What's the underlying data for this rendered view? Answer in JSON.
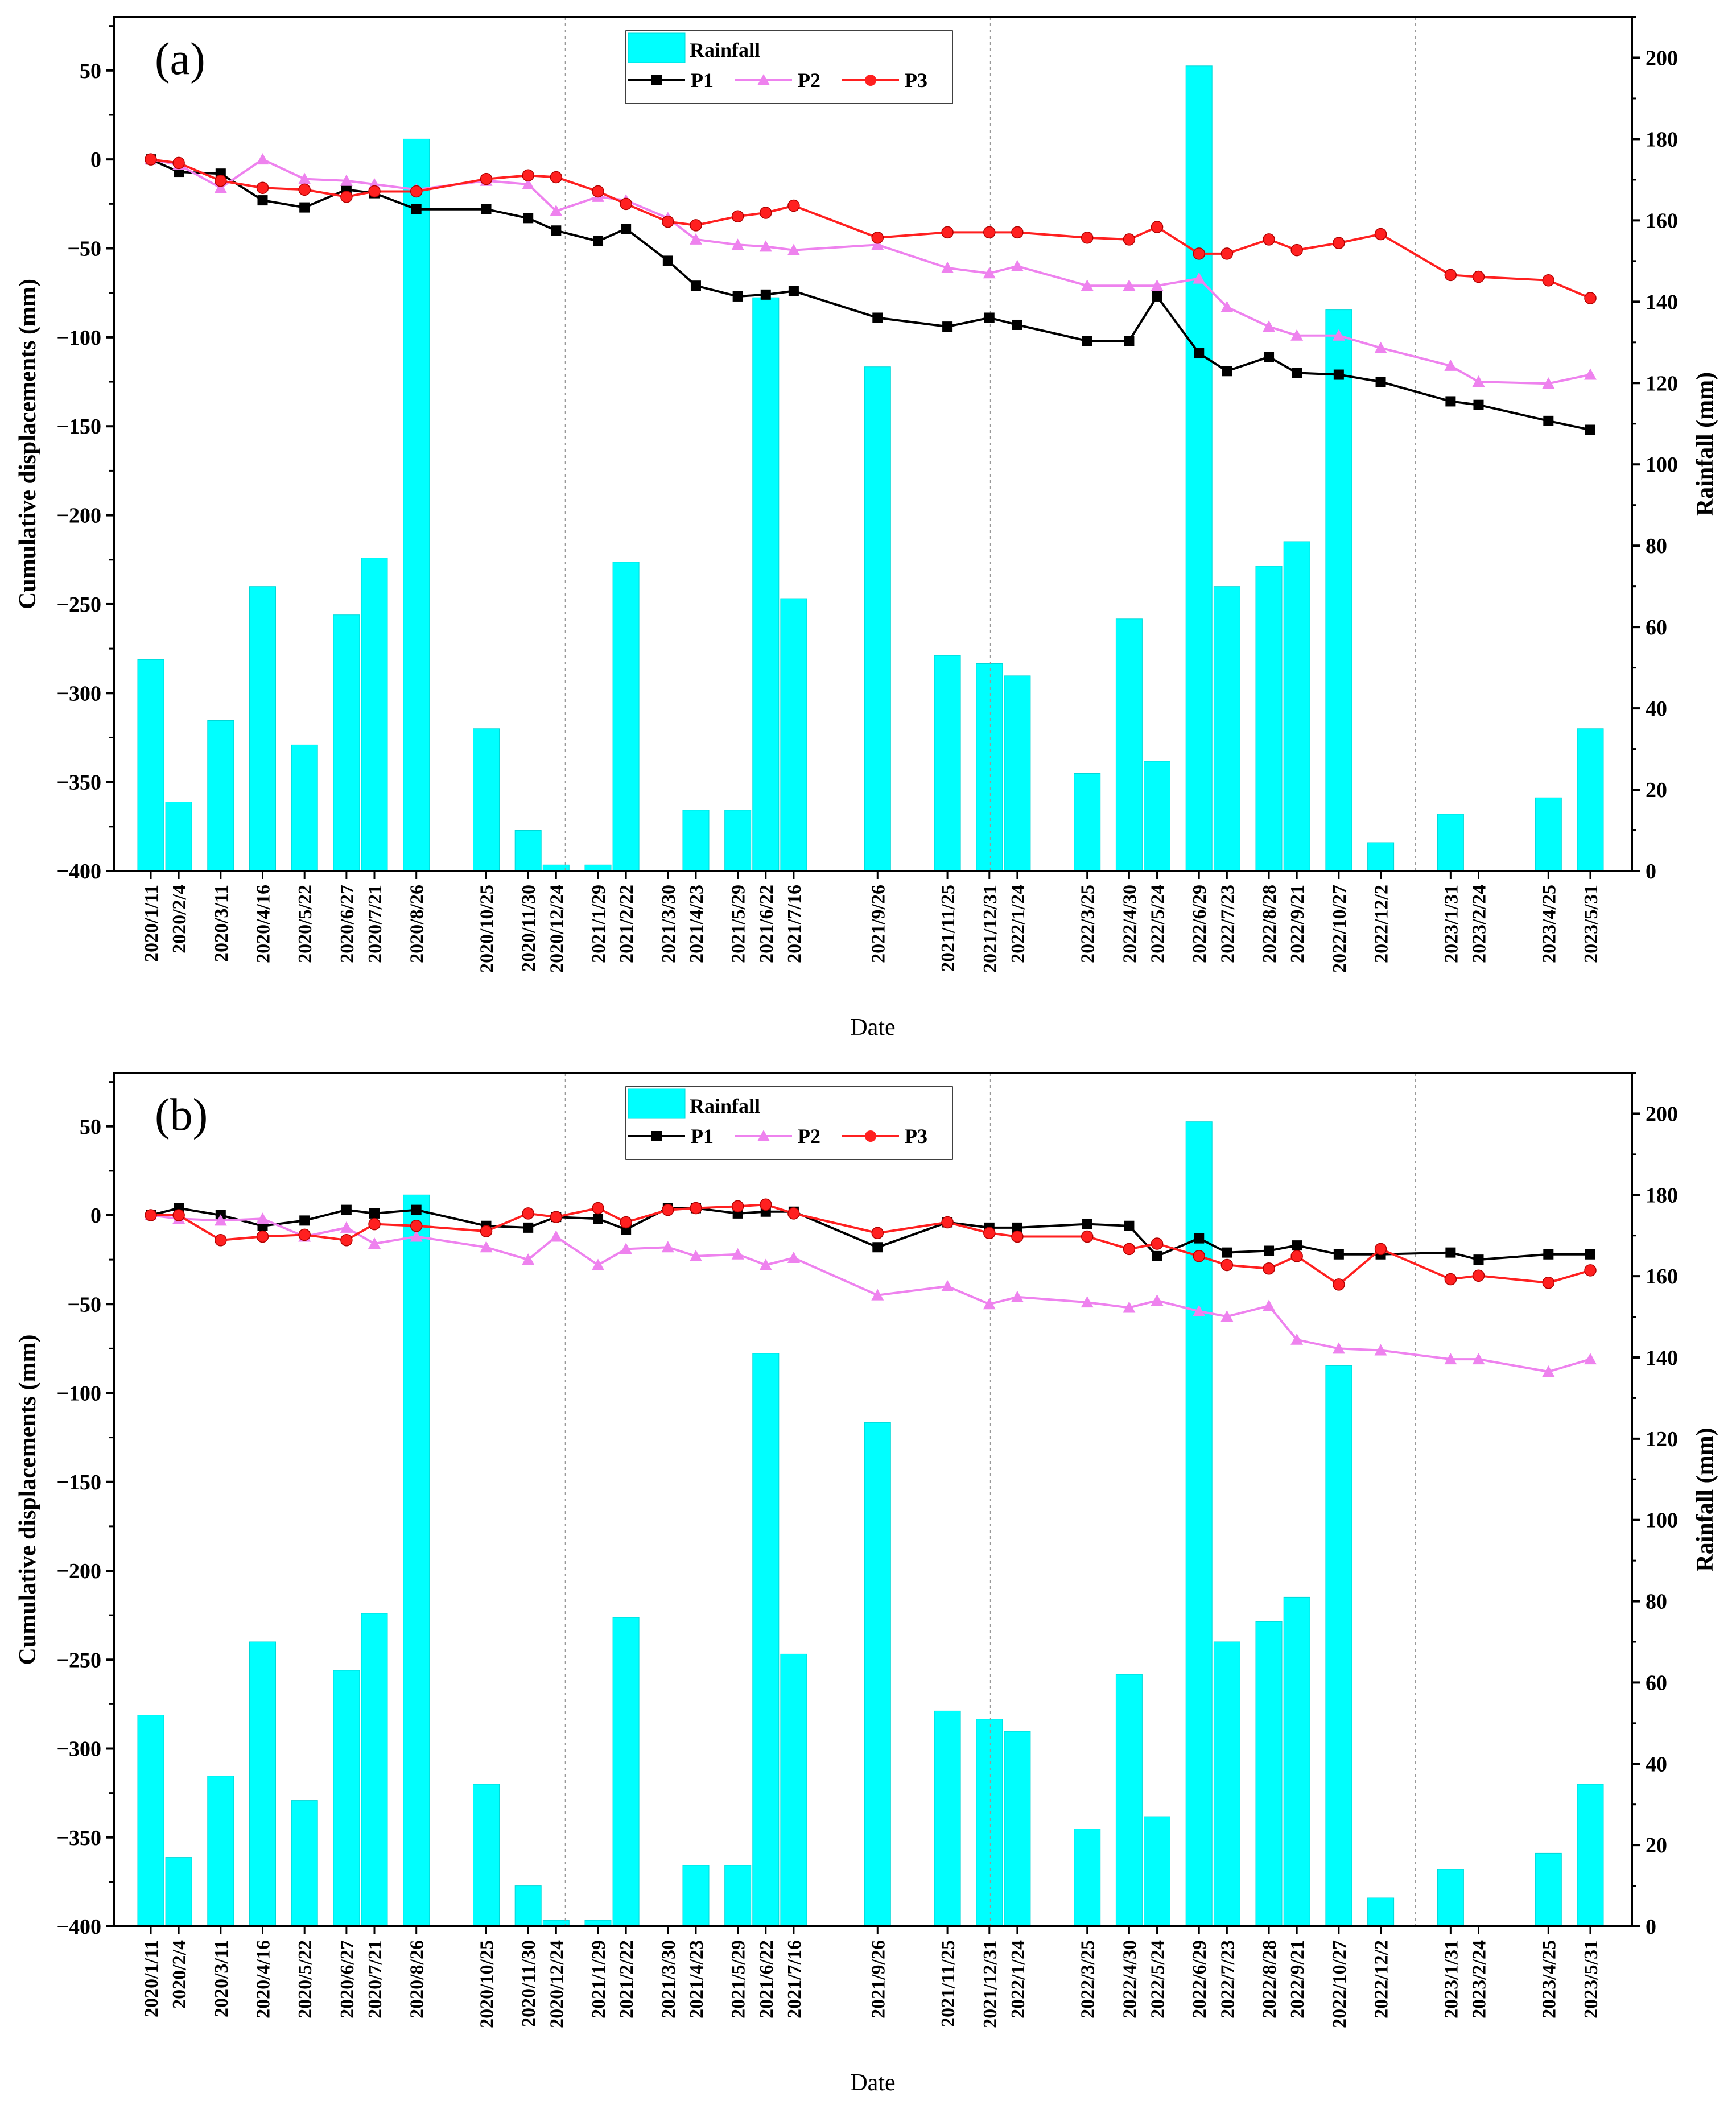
{
  "chart_data": [
    {
      "type": "bar+line",
      "panel_label": "(a)",
      "xlabel": "Date",
      "ylabel_left": "Cumulative displacements (mm)",
      "ylabel_right": "Rainfall (mm)",
      "ylim_left": [
        -400,
        80
      ],
      "ylim_right": [
        0,
        210
      ],
      "yticks_left": [
        50,
        0,
        -50,
        -100,
        -150,
        -200,
        -250,
        -300,
        -350,
        -400
      ],
      "yticks_right": [
        200,
        180,
        160,
        140,
        120,
        100,
        80,
        60,
        40,
        20,
        0
      ],
      "legend": [
        "Rainfall",
        "P1",
        "P2",
        "P3"
      ],
      "year_dividers": [
        "2021/1/1",
        "2022/1/1",
        "2023/1/1"
      ],
      "dates": [
        "2020/1/11",
        "2020/2/4",
        "2020/3/11",
        "2020/4/16",
        "2020/5/22",
        "2020/6/27",
        "2020/7/21",
        "2020/8/26",
        "2020/10/25",
        "2020/11/30",
        "2020/12/24",
        "2021/1/29",
        "2021/2/22",
        "2021/3/30",
        "2021/4/23",
        "2021/5/29",
        "2021/6/22",
        "2021/7/16",
        "2021/9/26",
        "2021/11/25",
        "2021/12/31",
        "2022/1/24",
        "2022/3/25",
        "2022/4/30",
        "2022/5/24",
        "2022/6/29",
        "2022/7/23",
        "2022/8/28",
        "2022/9/21",
        "2022/10/27",
        "2022/12/2",
        "2023/1/31",
        "2023/2/24",
        "2023/4/25",
        "2023/5/31"
      ],
      "rainfall": [
        52,
        17,
        37,
        70,
        31,
        63,
        77,
        180,
        35,
        10,
        1.5,
        1.5,
        76,
        0,
        15,
        15,
        141,
        67,
        124,
        53,
        51,
        48,
        24,
        62,
        27,
        198,
        70,
        75,
        81,
        138,
        7,
        14,
        0,
        18,
        35
      ],
      "series": [
        {
          "name": "P1",
          "color": "#000000",
          "marker": "square",
          "values": [
            0,
            -7,
            -8,
            -23,
            -27,
            -17,
            -19,
            -28,
            -28,
            -33,
            -40,
            -46,
            -39,
            -57,
            -71,
            -77,
            -76,
            -74,
            -89,
            -94,
            -89,
            -93,
            -102,
            -102,
            -77,
            -109,
            -119,
            -111,
            -120,
            -121,
            -125,
            -136,
            -138,
            -147,
            -152
          ]
        },
        {
          "name": "P2",
          "color": "#ee82ee",
          "marker": "triangle",
          "values": [
            0,
            -3,
            -16,
            0,
            -11,
            -12,
            -14,
            -17,
            -12,
            -14,
            -29,
            -21,
            -23,
            -33,
            -45,
            -48,
            -49,
            -51,
            -48,
            -61,
            -64,
            -60,
            -71,
            -71,
            -71,
            -67,
            -83,
            -94,
            -99,
            -99,
            -106,
            -116,
            -125,
            -126,
            -121
          ]
        },
        {
          "name": "P3",
          "color": "#ff2020",
          "marker": "circle",
          "values": [
            0,
            -2,
            -12,
            -16,
            -17,
            -21,
            -18,
            -18,
            -11,
            -9,
            -10,
            -18,
            -25,
            -35,
            -37,
            -32,
            -30,
            -26,
            -44,
            -41,
            -41,
            -41,
            -44,
            -45,
            -38,
            -53,
            -53,
            -45,
            -51,
            -47,
            -42,
            -65,
            -66,
            -68,
            -78
          ]
        }
      ]
    },
    {
      "type": "bar+line",
      "panel_label": "(b)",
      "xlabel": "Date",
      "ylabel_left": "Cumulative displacements (mm)",
      "ylabel_right": "Rainfall (mm)",
      "ylim_left": [
        -400,
        80
      ],
      "ylim_right": [
        0,
        210
      ],
      "yticks_left": [
        50,
        0,
        -50,
        -100,
        -150,
        -200,
        -250,
        -300,
        -350,
        -400
      ],
      "yticks_right": [
        200,
        180,
        160,
        140,
        120,
        100,
        80,
        60,
        40,
        20,
        0
      ],
      "legend": [
        "Rainfall",
        "P1",
        "P2",
        "P3"
      ],
      "year_dividers": [
        "2021/1/1",
        "2022/1/1",
        "2023/1/1"
      ],
      "dates": [
        "2020/1/11",
        "2020/2/4",
        "2020/3/11",
        "2020/4/16",
        "2020/5/22",
        "2020/6/27",
        "2020/7/21",
        "2020/8/26",
        "2020/10/25",
        "2020/11/30",
        "2020/12/24",
        "2021/1/29",
        "2021/2/22",
        "2021/3/30",
        "2021/4/23",
        "2021/5/29",
        "2021/6/22",
        "2021/7/16",
        "2021/9/26",
        "2021/11/25",
        "2021/12/31",
        "2022/1/24",
        "2022/3/25",
        "2022/4/30",
        "2022/5/24",
        "2022/6/29",
        "2022/7/23",
        "2022/8/28",
        "2022/9/21",
        "2022/10/27",
        "2022/12/2",
        "2023/1/31",
        "2023/2/24",
        "2023/4/25",
        "2023/5/31"
      ],
      "rainfall": [
        52,
        17,
        37,
        70,
        31,
        63,
        77,
        180,
        35,
        10,
        1.5,
        1.5,
        76,
        0,
        15,
        15,
        141,
        67,
        124,
        53,
        51,
        48,
        24,
        62,
        27,
        198,
        70,
        75,
        81,
        138,
        7,
        14,
        0,
        18,
        35
      ],
      "series": [
        {
          "name": "P1",
          "color": "#000000",
          "marker": "square",
          "values": [
            0,
            4,
            0,
            -6,
            -3,
            3,
            1,
            3,
            -6,
            -7,
            -1,
            -2,
            -8,
            4,
            4,
            1,
            2,
            2,
            -18,
            -4,
            -7,
            -7,
            -5,
            -6,
            -23,
            -13,
            -21,
            -20,
            -17,
            -22,
            -22,
            -21,
            -25,
            -22,
            -22
          ]
        },
        {
          "name": "P2",
          "color": "#ee82ee",
          "marker": "triangle",
          "values": [
            0,
            -2,
            -3,
            -2,
            -12,
            -7,
            -16,
            -12,
            -18,
            -25,
            -12,
            -28,
            -19,
            -18,
            -23,
            -22,
            -28,
            -24,
            -45,
            -40,
            -50,
            -46,
            -49,
            -52,
            -48,
            -54,
            -57,
            -51,
            -70,
            -75,
            -76,
            -81,
            -81,
            -88,
            -81
          ]
        },
        {
          "name": "P3",
          "color": "#ff2020",
          "marker": "circle",
          "values": [
            0,
            0,
            -14,
            -12,
            -11,
            -14,
            -5,
            -6,
            -9,
            1,
            -1,
            4,
            -4,
            3,
            4,
            5,
            6,
            1,
            -10,
            -4,
            -10,
            -12,
            -12,
            -19,
            -16,
            -23,
            -28,
            -30,
            -23,
            -39,
            -19,
            -36,
            -34,
            -38,
            -31
          ]
        }
      ]
    }
  ]
}
